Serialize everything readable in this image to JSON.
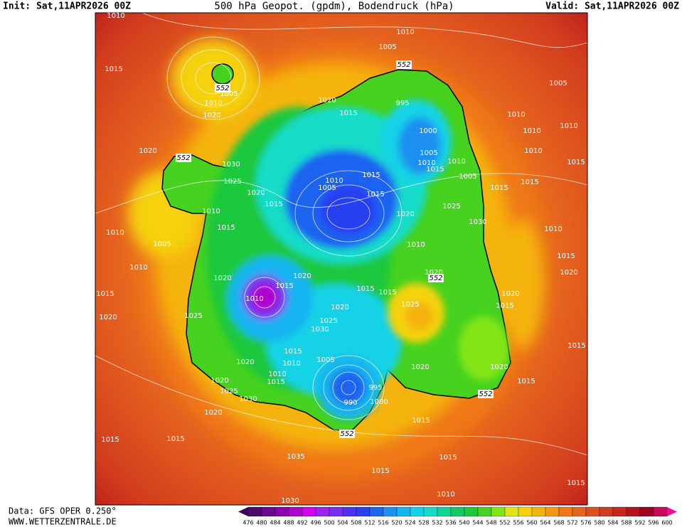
{
  "header": {
    "init": "Init: Sat,11APR2026 00Z",
    "title": "500 hPa Geopot. (gpdm), Bodendruck (hPa)",
    "valid": "Valid: Sat,11APR2026 00Z"
  },
  "footer": {
    "data": "Data: GFS OPER 0.250°",
    "site": "WWW.WETTERZENTRALE.DE"
  },
  "map": {
    "contour_labels": [
      "1010",
      "1015",
      "1020",
      "1005",
      "1010",
      "552",
      "552",
      "1005",
      "1010",
      "1020",
      "1020",
      "1015",
      "995",
      "1000",
      "1005",
      "1010",
      "1015",
      "1005",
      "1010",
      "552",
      "1030",
      "1025",
      "1020",
      "1015",
      "1010",
      "1015",
      "1010",
      "1005",
      "1010",
      "1015",
      "1020",
      "1010",
      "1005",
      "1015",
      "1015",
      "1020",
      "1025",
      "1030",
      "1010",
      "1020",
      "1020",
      "1015",
      "1010",
      "1025",
      "1015",
      "1015",
      "1020",
      "552",
      "1020",
      "1025",
      "1030",
      "1025",
      "1020",
      "1015",
      "1015",
      "1010",
      "1005",
      "1020",
      "1010",
      "1015",
      "1020",
      "1025",
      "1030",
      "995",
      "990",
      "1000",
      "1020",
      "1020",
      "552",
      "1020",
      "1015",
      "1015",
      "1015",
      "552",
      "1035",
      "1015",
      "1015",
      "1030",
      "1010",
      "1015",
      "1005",
      "1010",
      "1010",
      "1010",
      "1015",
      "1010",
      "1015",
      "1015",
      "1020",
      "1015",
      "1015",
      "1010",
      "1015"
    ]
  },
  "colorbar": {
    "labels": [
      476,
      480,
      484,
      488,
      492,
      496,
      500,
      504,
      508,
      512,
      516,
      520,
      524,
      528,
      532,
      536,
      540,
      544,
      548,
      552,
      556,
      560,
      564,
      568,
      572,
      576,
      580,
      584,
      588,
      592,
      596,
      600
    ],
    "colors": [
      "#4a0a6e",
      "#6a0890",
      "#8c00b0",
      "#b000d0",
      "#d400f0",
      "#a020f0",
      "#7830f0",
      "#5030f0",
      "#2840f0",
      "#1e64f0",
      "#1e90f0",
      "#14b4f0",
      "#14d2e6",
      "#14dcc8",
      "#14d296",
      "#14c864",
      "#1ec83c",
      "#46d21e",
      "#82e614",
      "#dce614",
      "#f5d20a",
      "#f5b40a",
      "#f59614",
      "#f07814",
      "#e6641e",
      "#dc501e",
      "#d23c1e",
      "#c8281e",
      "#b4141e",
      "#a0001e",
      "#c80a5a"
    ],
    "under_color": "#3c005a",
    "over_color": "#e6148c"
  }
}
